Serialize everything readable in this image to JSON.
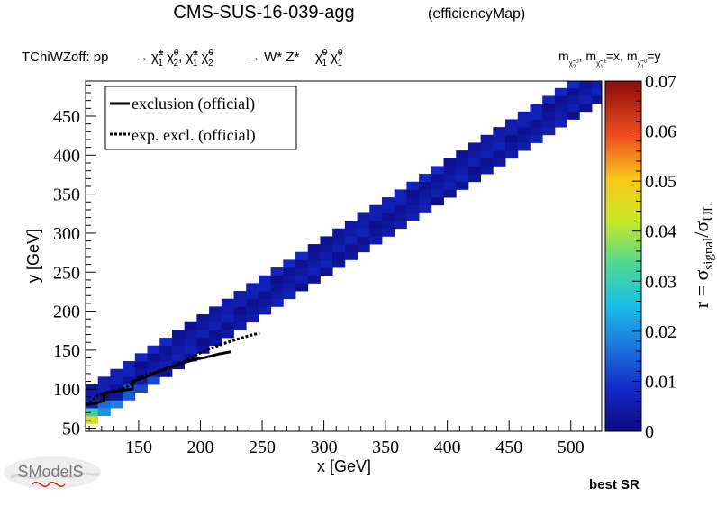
{
  "header": {
    "title": "CMS-SUS-16-039-agg",
    "subtitle": "(efficiencyMap)",
    "process_prefix": "TChiWZoff: pp",
    "process_arrow": "→",
    "process_final": "→ W* Z*",
    "mass_relation": "m  , m  =x, m  =y",
    "best_sr": "best SR"
  },
  "chart_data": {
    "type": "heatmap",
    "xlabel": "x [GeV]",
    "ylabel": "y [GeV]",
    "zlabel": "r = σsignal/σUL",
    "xlim": [
      107,
      525
    ],
    "ylim": [
      46,
      495
    ],
    "zlim": [
      0,
      0.07
    ],
    "x_ticks": [
      150,
      200,
      250,
      300,
      350,
      400,
      450,
      500
    ],
    "y_ticks": [
      50,
      100,
      150,
      200,
      250,
      300,
      350,
      400,
      450
    ],
    "z_ticks": [
      0,
      0.01,
      0.02,
      0.03,
      0.04,
      0.05,
      0.06,
      0.07
    ],
    "z_tick_labels": [
      "0",
      "0.01",
      "0.02",
      "0.03",
      "0.04",
      "0.05",
      "0.06",
      "0.07"
    ],
    "legend": {
      "placement": "top-left",
      "entries": [
        {
          "label": "exclusion (official)",
          "style": "solid"
        },
        {
          "label": "exp. excl. (official)",
          "style": "dotted"
        }
      ]
    },
    "band": {
      "x_step": 10,
      "y_step": 10,
      "dm_min": 5,
      "dm_max": 55
    },
    "colored_cells": [
      {
        "x": 107,
        "y": 50,
        "value": 0.04
      },
      {
        "x": 107,
        "y": 60,
        "value": 0.045
      },
      {
        "x": 107,
        "y": 70,
        "value": 0.03
      },
      {
        "x": 117,
        "y": 50,
        "value": 0.025
      },
      {
        "x": 117,
        "y": 60,
        "value": 0.03
      },
      {
        "x": 127,
        "y": 50,
        "value": 0.035
      },
      {
        "x": 127,
        "y": 60,
        "value": 0.028
      },
      {
        "x": 137,
        "y": 60,
        "value": 0.04
      },
      {
        "x": 117,
        "y": 70,
        "value": 0.02
      },
      {
        "x": 127,
        "y": 70,
        "value": 0.022
      },
      {
        "x": 137,
        "y": 70,
        "value": 0.024
      },
      {
        "x": 147,
        "y": 70,
        "value": 0.026
      },
      {
        "x": 117,
        "y": 80,
        "value": 0.016
      },
      {
        "x": 127,
        "y": 80,
        "value": 0.018
      },
      {
        "x": 137,
        "y": 80,
        "value": 0.02
      },
      {
        "x": 147,
        "y": 80,
        "value": 0.019
      },
      {
        "x": 157,
        "y": 80,
        "value": 0.017
      },
      {
        "x": 137,
        "y": 90,
        "value": 0.014
      },
      {
        "x": 147,
        "y": 90,
        "value": 0.015
      },
      {
        "x": 157,
        "y": 90,
        "value": 0.016
      },
      {
        "x": 167,
        "y": 90,
        "value": 0.015
      },
      {
        "x": 177,
        "y": 90,
        "value": 0.014
      },
      {
        "x": 137,
        "y": 100,
        "value": 0.013
      },
      {
        "x": 147,
        "y": 100,
        "value": 0.012
      },
      {
        "x": 157,
        "y": 110,
        "value": 0.012
      },
      {
        "x": 167,
        "y": 110,
        "value": 0.011
      }
    ],
    "exclusion_official": [
      [
        107,
        80
      ],
      [
        115,
        82
      ],
      [
        122,
        85
      ],
      [
        122,
        95
      ],
      [
        135,
        98
      ],
      [
        145,
        100
      ],
      [
        145,
        110
      ],
      [
        155,
        115
      ],
      [
        165,
        122
      ],
      [
        175,
        128
      ],
      [
        185,
        133
      ],
      [
        195,
        138
      ],
      [
        205,
        141
      ],
      [
        215,
        145
      ],
      [
        225,
        148
      ]
    ],
    "exp_exclusion_official": [
      [
        107,
        80
      ],
      [
        112,
        85
      ],
      [
        117,
        92
      ],
      [
        127,
        96
      ],
      [
        140,
        102
      ],
      [
        145,
        108
      ],
      [
        150,
        115
      ],
      [
        160,
        120
      ],
      [
        170,
        125
      ],
      [
        180,
        130
      ],
      [
        190,
        138
      ],
      [
        198,
        145
      ],
      [
        208,
        152
      ],
      [
        218,
        158
      ],
      [
        228,
        163
      ],
      [
        238,
        168
      ],
      [
        248,
        172
      ]
    ]
  },
  "logo": {
    "text": "SModelS"
  }
}
